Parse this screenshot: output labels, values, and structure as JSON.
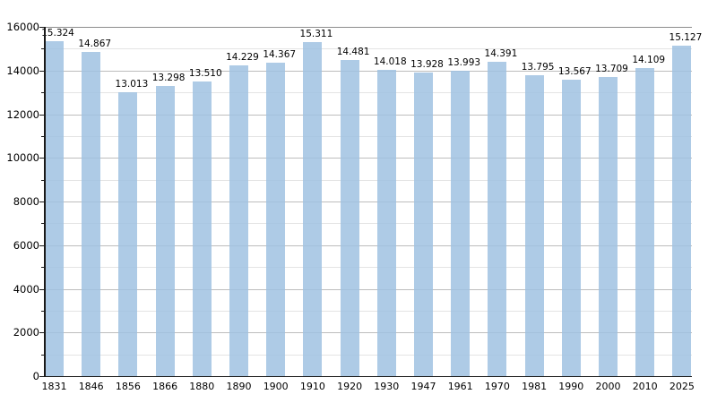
{
  "chart_data": {
    "type": "bar",
    "title": "",
    "xlabel": "",
    "ylabel": "",
    "categories": [
      "1831",
      "1846",
      "1856",
      "1866",
      "1880",
      "1890",
      "1900",
      "1910",
      "1920",
      "1930",
      "1947",
      "1961",
      "1970",
      "1981",
      "1990",
      "2000",
      "2010",
      "2025"
    ],
    "values": [
      15324,
      14867,
      13013,
      13298,
      13510,
      14229,
      14367,
      15311,
      14481,
      14018,
      13928,
      13993,
      14391,
      13795,
      13567,
      13709,
      14109,
      15127
    ],
    "bar_labels": [
      "15.324",
      "14.867",
      "13.013",
      "13.298",
      "13.510",
      "14.229",
      "14.367",
      "15.311",
      "14.481",
      "14.018",
      "13.928",
      "13.993",
      "14.391",
      "13.795",
      "13.567",
      "13.709",
      "14.109",
      "15.127"
    ],
    "y_axis": {
      "min": 0,
      "max": 16000,
      "major_step": 2000,
      "minor_step": 1000,
      "tick_labels": [
        "0",
        "2000",
        "4000",
        "6000",
        "8000",
        "10000",
        "12000",
        "14000",
        "16000"
      ]
    },
    "grid": "horizontal major+minor",
    "legend": false
  },
  "colors": {
    "background": "#ffffff",
    "bar_fill_rgba": "rgba(160,194,226,0.85)",
    "bar_fill_hex": "#aecbe6",
    "grid_minor": "#e4e4e4",
    "grid_major": "#bdbdbd",
    "grid_top": "#8c8c8c",
    "axis": "#1a1a1a",
    "text": "#000000"
  }
}
